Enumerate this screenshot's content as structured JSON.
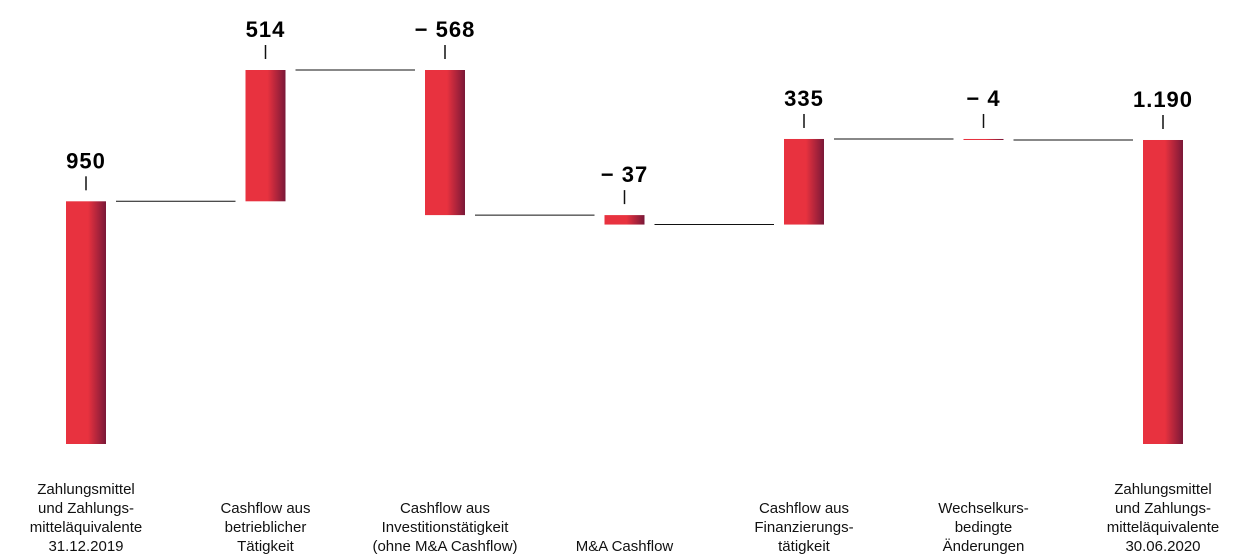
{
  "chart_data": {
    "type": "waterfall",
    "categories": [
      "Zahlungsmittel\nund Zahlungs-\nmitteläquivalente\n31.12.2019",
      "Cashflow aus\nbetrieblicher\nTätigkeit",
      "Cashflow aus\nInvestitionstätigkeit\n(ohne M&A Cashflow)",
      "M&A Cashflow",
      "Cashflow aus\nFinanzierungs-\ntätigkeit",
      "Wechselkurs-\nbedingte\nÄnderungen",
      "Zahlungsmittel\nund Zahlungs-\nmitteläquivalente\n30.06.2020"
    ],
    "values": [
      950,
      514,
      -568,
      -37,
      335,
      -4,
      1190
    ],
    "value_labels": [
      "950",
      "514",
      "− 568",
      "− 37",
      "335",
      "− 4",
      "1.190"
    ],
    "color": "#e8323f"
  }
}
